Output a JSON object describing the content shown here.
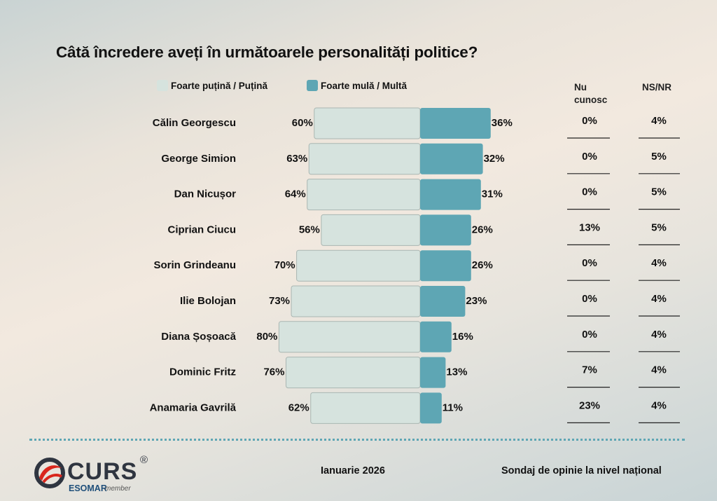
{
  "title": "Câtă încredere aveți în următoarele personalități politice?",
  "legend": {
    "low": "Foarte puțină / Puțină",
    "high": "Foarte mulă / Multă"
  },
  "columns": {
    "nu_cunosc": "Nu\ncunosc",
    "ns_nr": "NS/NR"
  },
  "colors": {
    "low_bar": "#d6e3de",
    "high_bar": "#5ea6b4",
    "rule": "#222222"
  },
  "chart_data": {
    "type": "bar",
    "orientation": "horizontal-diverging",
    "categories": [
      "Călin Georgescu",
      "George Simion",
      "Dan Nicușor",
      "Ciprian Ciucu",
      "Sorin Grindeanu",
      "Ilie Bolojan",
      "Diana Șoșoacă",
      "Dominic Fritz",
      "Anamaria Gavrilă"
    ],
    "series": [
      {
        "name": "Foarte puțină / Puțină",
        "values": [
          60,
          63,
          64,
          56,
          70,
          73,
          80,
          76,
          62
        ]
      },
      {
        "name": "Foarte mulă / Multă",
        "values": [
          36,
          32,
          31,
          26,
          26,
          23,
          16,
          13,
          11
        ]
      }
    ],
    "table": {
      "Nu cunosc": [
        0,
        0,
        0,
        13,
        0,
        0,
        0,
        7,
        23
      ],
      "NS/NR": [
        4,
        5,
        5,
        5,
        4,
        4,
        4,
        4,
        4
      ]
    },
    "unit": "%",
    "legend_position": "top"
  },
  "footer": {
    "brand": "CURS",
    "registered": "®",
    "esomar": "ESOMAR",
    "member": "member",
    "date": "Ianuarie 2026",
    "source": "Sondaj de opinie la nivel național"
  }
}
